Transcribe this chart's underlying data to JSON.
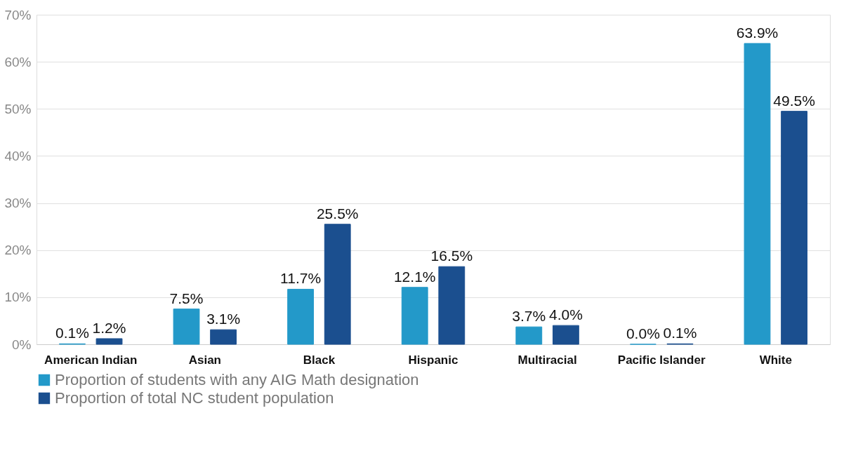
{
  "chart_data": {
    "type": "bar",
    "categories": [
      "American Indian",
      "Asian",
      "Black",
      "Hispanic",
      "Multiracial",
      "Pacific Islander",
      "White"
    ],
    "series": [
      {
        "name": "Proportion of students with any AIG Math designation",
        "color": "#2399c9",
        "values": [
          0.1,
          7.5,
          11.7,
          12.1,
          3.7,
          0.0,
          63.9
        ],
        "value_labels": [
          "0.1%",
          "7.5%",
          "11.7%",
          "12.1%",
          "3.7%",
          "0.0%",
          "63.9%"
        ]
      },
      {
        "name": "Proportion of total NC student population",
        "color": "#1b4f8f",
        "values": [
          1.2,
          3.1,
          25.5,
          16.5,
          4.0,
          0.1,
          49.5
        ],
        "value_labels": [
          "1.2%",
          "3.1%",
          "25.5%",
          "16.5%",
          "4.0%",
          "0.1%",
          "49.5%"
        ]
      }
    ],
    "ylim": [
      0,
      70
    ],
    "yticks": [
      {
        "value": 0,
        "label": "0%"
      },
      {
        "value": 10,
        "label": "10%"
      },
      {
        "value": 20,
        "label": "20%"
      },
      {
        "value": 30,
        "label": "30%"
      },
      {
        "value": 40,
        "label": "40%"
      },
      {
        "value": 50,
        "label": "50%"
      },
      {
        "value": 60,
        "label": "60%"
      },
      {
        "value": 70,
        "label": "70%"
      }
    ],
    "grid": "y",
    "legend": "bottom"
  }
}
